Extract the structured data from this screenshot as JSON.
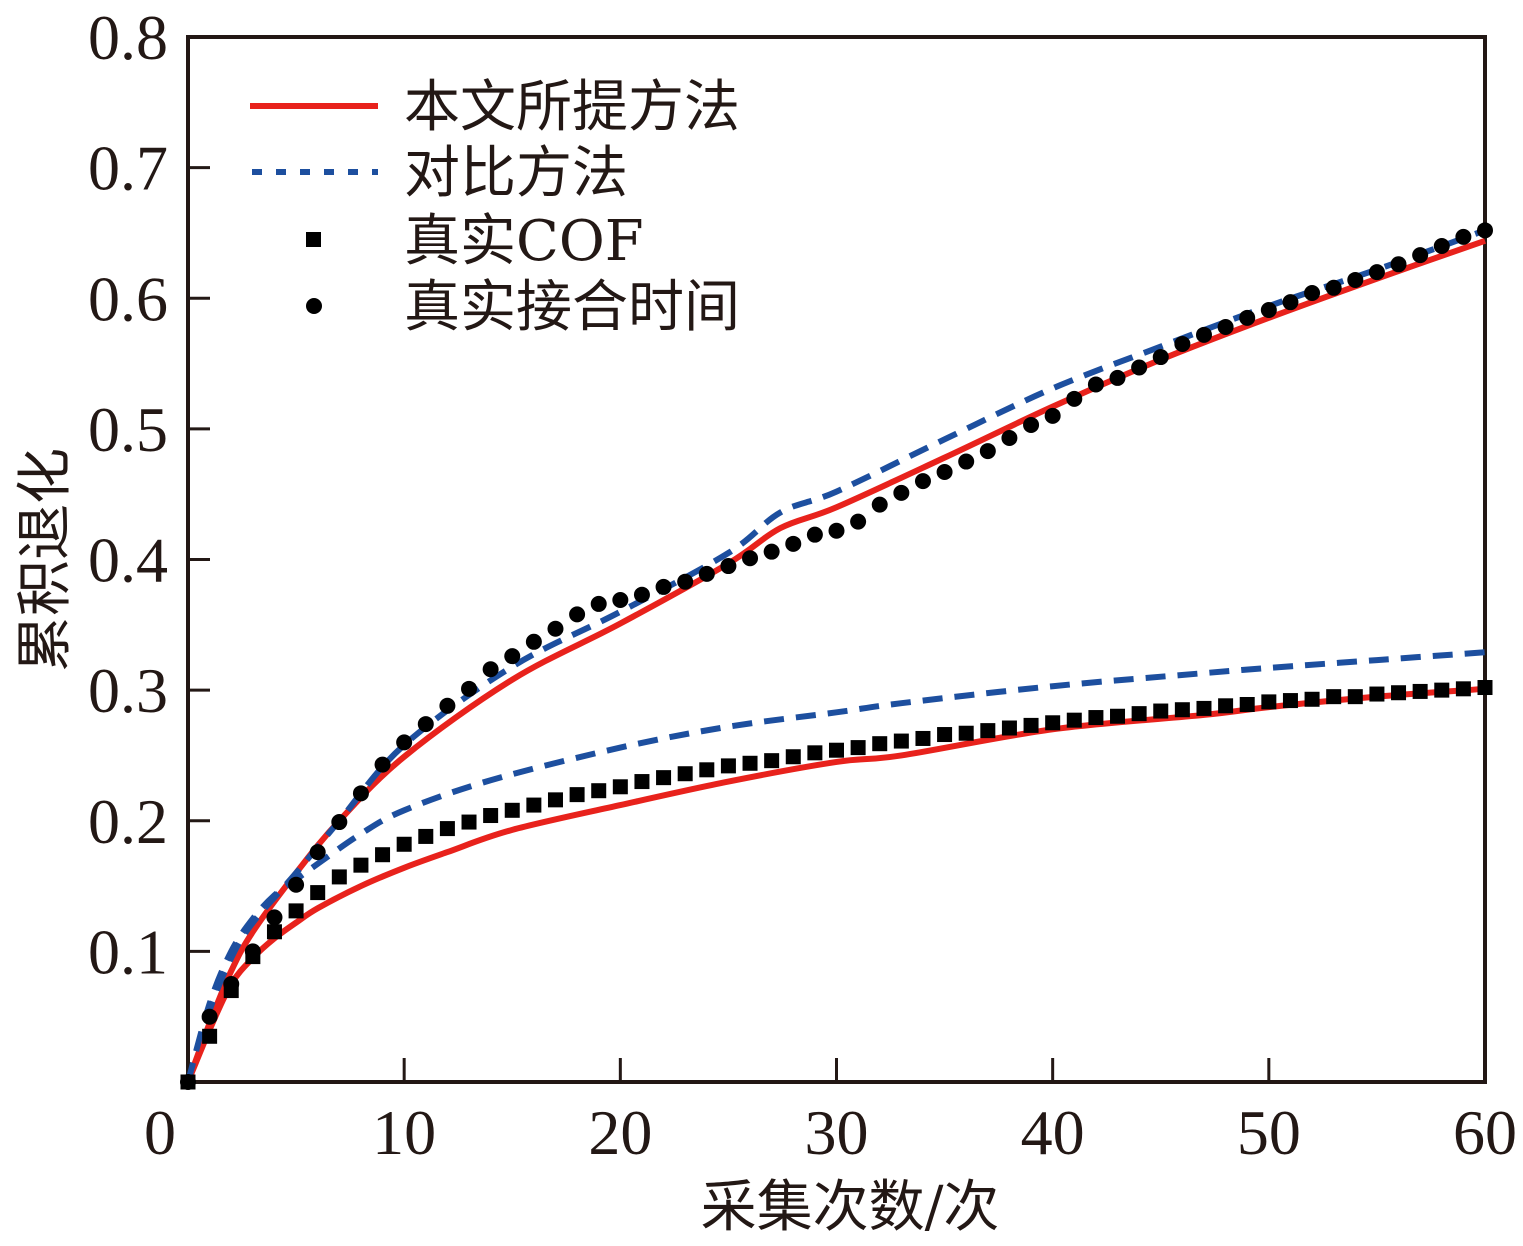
{
  "chart_data": {
    "type": "line",
    "title": "",
    "xlabel": "采集次数/次",
    "ylabel": "累积退化",
    "xlim": [
      0,
      60
    ],
    "ylim": [
      0,
      0.8
    ],
    "xticks": [
      0,
      10,
      20,
      30,
      40,
      50,
      60
    ],
    "xtick_labels": [
      "0",
      "10",
      "20",
      "30",
      "40",
      "50",
      "60"
    ],
    "yticks": [
      0.1,
      0.2,
      0.3,
      0.4,
      0.5,
      0.6,
      0.7,
      0.8
    ],
    "ytick_labels": [
      "0.1",
      "0.2",
      "0.3",
      "0.4",
      "0.5",
      "0.6",
      "0.7",
      "0.8"
    ],
    "grid": false,
    "legend_position": "top-left",
    "legend": [
      {
        "label": "本文所提方法",
        "style": "solid-line",
        "color": "#e8221c"
      },
      {
        "label": "对比方法",
        "style": "dashed-line",
        "color": "#1d4f9f"
      },
      {
        "label": "真实COF",
        "style": "square-marker",
        "color": "#000000"
      },
      {
        "label": "真实接合时间",
        "style": "circle-marker",
        "color": "#000000"
      }
    ],
    "series": [
      {
        "name": "真实接合时间",
        "kind": "scatter",
        "marker": "circle",
        "color": "#000000",
        "x": [
          0,
          1,
          2,
          3,
          4,
          5,
          6,
          7,
          8,
          9,
          10,
          11,
          12,
          13,
          14,
          15,
          16,
          17,
          18,
          19,
          20,
          21,
          22,
          23,
          24,
          25,
          26,
          27,
          28,
          29,
          30,
          31,
          32,
          33,
          34,
          35,
          36,
          37,
          38,
          39,
          40,
          41,
          42,
          43,
          44,
          45,
          46,
          47,
          48,
          49,
          50,
          51,
          52,
          53,
          54,
          55,
          56,
          57,
          58,
          59,
          60
        ],
        "y": [
          0,
          0.05,
          0.075,
          0.1,
          0.126,
          0.151,
          0.176,
          0.199,
          0.221,
          0.243,
          0.26,
          0.274,
          0.288,
          0.301,
          0.316,
          0.326,
          0.337,
          0.347,
          0.358,
          0.366,
          0.369,
          0.373,
          0.379,
          0.383,
          0.389,
          0.395,
          0.401,
          0.406,
          0.412,
          0.419,
          0.422,
          0.429,
          0.442,
          0.451,
          0.46,
          0.467,
          0.475,
          0.483,
          0.493,
          0.503,
          0.51,
          0.523,
          0.534,
          0.539,
          0.547,
          0.555,
          0.565,
          0.572,
          0.578,
          0.585,
          0.591,
          0.597,
          0.604,
          0.608,
          0.614,
          0.62,
          0.626,
          0.633,
          0.64,
          0.647,
          0.652
        ]
      },
      {
        "name": "真实COF",
        "kind": "scatter",
        "marker": "square",
        "color": "#000000",
        "x": [
          0,
          1,
          2,
          3,
          4,
          5,
          6,
          7,
          8,
          9,
          10,
          11,
          12,
          13,
          14,
          15,
          16,
          17,
          18,
          19,
          20,
          21,
          22,
          23,
          24,
          25,
          26,
          27,
          28,
          29,
          30,
          31,
          32,
          33,
          34,
          35,
          36,
          37,
          38,
          39,
          40,
          41,
          42,
          43,
          44,
          45,
          46,
          47,
          48,
          49,
          50,
          51,
          52,
          53,
          54,
          55,
          56,
          57,
          58,
          59,
          60
        ],
        "y": [
          0,
          0.035,
          0.07,
          0.096,
          0.115,
          0.131,
          0.145,
          0.157,
          0.166,
          0.174,
          0.182,
          0.188,
          0.194,
          0.199,
          0.204,
          0.208,
          0.212,
          0.216,
          0.22,
          0.223,
          0.226,
          0.23,
          0.233,
          0.236,
          0.239,
          0.242,
          0.244,
          0.246,
          0.249,
          0.252,
          0.254,
          0.256,
          0.259,
          0.261,
          0.263,
          0.266,
          0.267,
          0.269,
          0.271,
          0.273,
          0.275,
          0.277,
          0.279,
          0.28,
          0.282,
          0.284,
          0.285,
          0.286,
          0.288,
          0.289,
          0.291,
          0.292,
          0.293,
          0.295,
          0.295,
          0.297,
          0.298,
          0.299,
          0.3,
          0.301,
          0.302
        ]
      },
      {
        "name": "本文所提方法 (接合时间)",
        "kind": "line",
        "style": "solid",
        "color": "#e8221c",
        "x": [
          0,
          1,
          2,
          3,
          5,
          7,
          10,
          15,
          20,
          25,
          27.4,
          30,
          35,
          40,
          45,
          50,
          55,
          60
        ],
        "y": [
          0,
          0.045,
          0.085,
          0.115,
          0.16,
          0.2,
          0.249,
          0.308,
          0.351,
          0.397,
          0.424,
          0.44,
          0.478,
          0.517,
          0.553,
          0.585,
          0.615,
          0.644
        ]
      },
      {
        "name": "对比方法 (接合时间)",
        "kind": "line",
        "style": "dashed",
        "color": "#1d4f9f",
        "x": [
          0,
          1,
          2,
          3,
          5,
          7,
          10,
          15,
          20,
          25,
          27.4,
          30,
          35,
          40,
          45,
          50,
          55,
          60
        ],
        "y": [
          0,
          0.055,
          0.095,
          0.122,
          0.16,
          0.2,
          0.258,
          0.318,
          0.36,
          0.405,
          0.436,
          0.452,
          0.492,
          0.531,
          0.563,
          0.594,
          0.622,
          0.652
        ]
      },
      {
        "name": "本文所提方法 (COF)",
        "kind": "line",
        "style": "solid",
        "color": "#e8221c",
        "x": [
          0,
          1,
          2,
          3,
          4,
          5,
          6,
          8,
          10,
          12,
          15,
          20,
          25,
          30,
          33,
          40,
          47,
          50,
          55,
          60
        ],
        "y": [
          0,
          0.04,
          0.075,
          0.095,
          0.11,
          0.122,
          0.133,
          0.15,
          0.164,
          0.176,
          0.193,
          0.212,
          0.23,
          0.245,
          0.25,
          0.27,
          0.281,
          0.287,
          0.295,
          0.301
        ]
      },
      {
        "name": "对比方法 (COF)",
        "kind": "line",
        "style": "dashed",
        "color": "#1d4f9f",
        "x": [
          0,
          1,
          2,
          3,
          4,
          5,
          6,
          8,
          10,
          14,
          20,
          25,
          30,
          33,
          40,
          47,
          50,
          55,
          60
        ],
        "y": [
          0,
          0.06,
          0.1,
          0.125,
          0.143,
          0.155,
          0.167,
          0.19,
          0.208,
          0.231,
          0.256,
          0.272,
          0.283,
          0.29,
          0.303,
          0.313,
          0.317,
          0.323,
          0.329
        ]
      }
    ]
  }
}
